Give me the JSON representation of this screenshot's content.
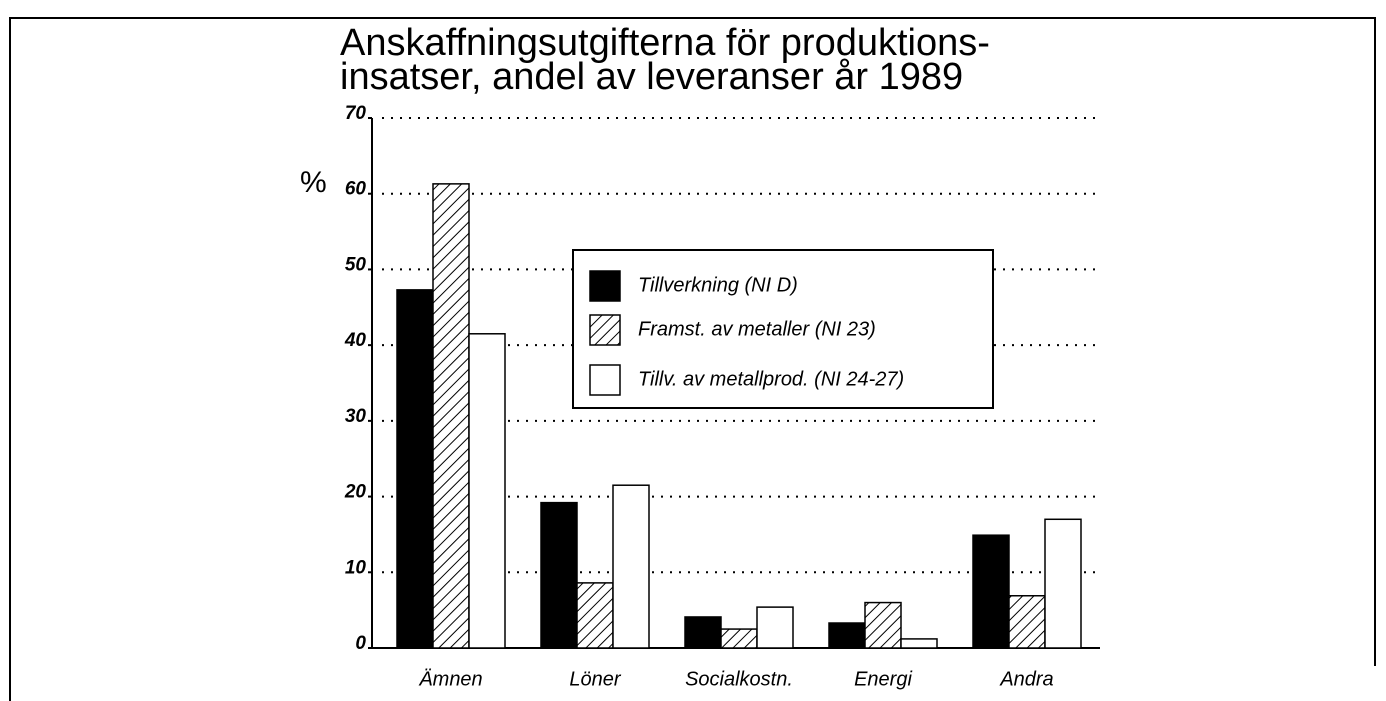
{
  "chart_data": {
    "type": "bar",
    "title": [
      "Anskaffningsutgifterna för produktions-",
      "insatser, andel av leveranser år 1989"
    ],
    "ylabel": "%",
    "categories": [
      "Ämnen",
      "Löner",
      "Socialkostn.",
      "Energi",
      "Andra"
    ],
    "series": [
      {
        "name": "Tillverkning (NI D)",
        "color": "#000000",
        "values": [
          47.3,
          19.2,
          4.1,
          3.3,
          14.9
        ]
      },
      {
        "name": "Framst. av metaller (NI 23)",
        "color": "#000000",
        "pattern": "hatch",
        "values": [
          61.3,
          8.6,
          2.5,
          6.0,
          6.9
        ]
      },
      {
        "name": "Tillv. av metallprod. (NI 24-27)",
        "color": "#ffffff",
        "values": [
          41.5,
          21.5,
          5.4,
          1.2,
          17.0
        ]
      }
    ],
    "ylim": [
      0,
      70
    ],
    "yticks": [
      0,
      10,
      20,
      30,
      40,
      50,
      60,
      70
    ],
    "grid": true,
    "legend": "center"
  }
}
